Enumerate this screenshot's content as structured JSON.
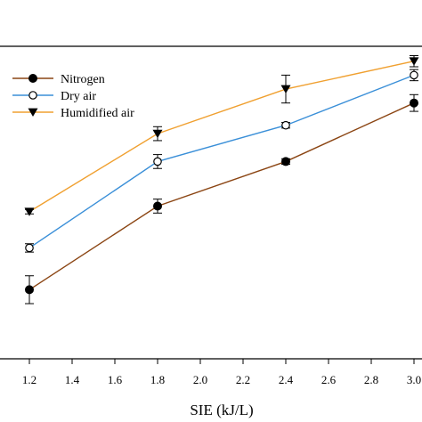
{
  "chart_data": {
    "type": "line",
    "title": "",
    "xlabel": "SIE (kJ/L)",
    "ylabel": "",
    "xlim": [
      1.2,
      3.0
    ],
    "xticks": [
      "1.2",
      "1.4",
      "1.6",
      "1.8",
      "2.0",
      "2.2",
      "2.4",
      "2.6",
      "2.8",
      "3.0"
    ],
    "x": [
      1.2,
      1.8,
      2.4,
      3.0
    ],
    "legend_position": "top-left",
    "grid": false,
    "series": [
      {
        "name": "Nitrogen",
        "color": "#8B4513",
        "marker": "filled-circle",
        "values": [
          0.2,
          0.5,
          0.66,
          0.87
        ],
        "errors": [
          0.05,
          0.025,
          0.01,
          0.03
        ]
      },
      {
        "name": "Dry air",
        "color": "#3A8FD8",
        "marker": "open-circle",
        "values": [
          0.35,
          0.66,
          0.79,
          0.97
        ],
        "errors": [
          0.015,
          0.025,
          0.01,
          0.02
        ]
      },
      {
        "name": "Humidified air",
        "color": "#F0A030",
        "marker": "filled-triangle-down",
        "values": [
          0.48,
          0.76,
          0.92,
          1.02
        ],
        "errors": [
          0.008,
          0.025,
          0.05,
          0.02
        ]
      }
    ]
  }
}
